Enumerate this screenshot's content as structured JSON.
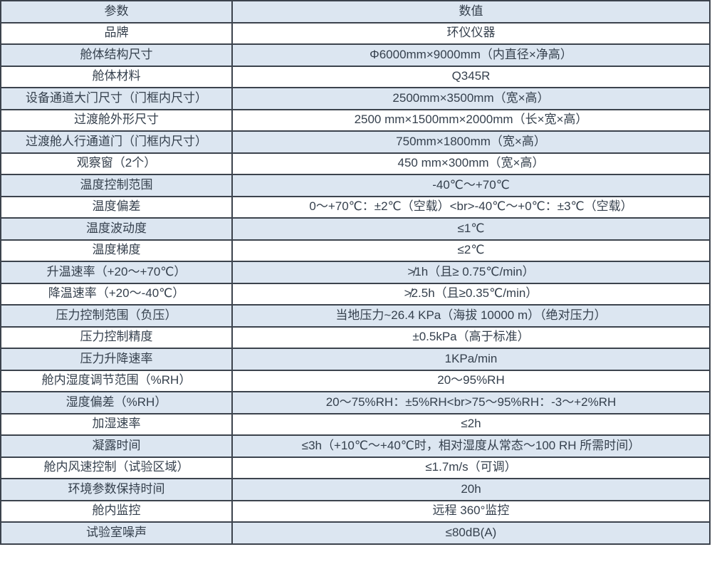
{
  "table": {
    "columns": [
      "参数",
      "数值"
    ],
    "rows": [
      {
        "param": "品牌",
        "value": "环仪仪器"
      },
      {
        "param": "舱体结构尺寸",
        "value": "Φ6000mm×9000mm（内直径×净高）"
      },
      {
        "param": "舱体材料",
        "value": "Q345R"
      },
      {
        "param": "设备通道大门尺寸（门框内尺寸）",
        "value": "2500mm×3500mm（宽×高）"
      },
      {
        "param": "过渡舱外形尺寸",
        "value": "2500 mm×1500mm×2000mm（长×宽×高）"
      },
      {
        "param": "过渡舱人行通道门（门框内尺寸）",
        "value": "750mm×1800mm（宽×高）"
      },
      {
        "param": "观察窗（2个）",
        "value": "450 mm×300mm（宽×高）"
      },
      {
        "param": "温度控制范围",
        "value": "-40℃～+70℃"
      },
      {
        "param": "温度偏差",
        "value": "0～+70℃：±2℃（空载）<br>-40℃～+0℃：±3℃（空载）"
      },
      {
        "param": "温度波动度",
        "value": "≤1℃"
      },
      {
        "param": "温度梯度",
        "value": "≤2℃"
      },
      {
        "param": "升温速率（+20～+70℃）",
        "value": "≯1h（且≥ 0.75℃/min）"
      },
      {
        "param": "降温速率（+20～-40℃）",
        "value": "≯2.5h（且≥0.35℃/min）"
      },
      {
        "param": "压力控制范围（负压）",
        "value": "当地压力~26.4 KPa（海拔 10000 m）（绝对压力）"
      },
      {
        "param": "压力控制精度",
        "value": "±0.5kPa（高于标准）"
      },
      {
        "param": "压力升降速率",
        "value": "1KPa/min"
      },
      {
        "param": "舱内湿度调节范围（%RH）",
        "value": "20～95%RH"
      },
      {
        "param": "湿度偏差（%RH）",
        "value": "20～75%RH：±5%RH<br>75～95%RH：-3～+2%RH"
      },
      {
        "param": "加湿速率",
        "value": "≤2h"
      },
      {
        "param": "凝露时间",
        "value": "≤3h（+10℃～+40℃时，相对湿度从常态～100 RH 所需时间）"
      },
      {
        "param": "舱内风速控制（试验区域）",
        "value": "≤1.7m/s（可调）"
      },
      {
        "param": "环境参数保持时间",
        "value": "20h"
      },
      {
        "param": "舱内监控",
        "value": "远程 360°监控"
      },
      {
        "param": "试验室噪声",
        "value": "≤80dB(A)"
      }
    ]
  },
  "colors": {
    "row_tint": "#dce6f1",
    "row_base": "#ffffff",
    "border": "#3c434d",
    "text": "#35404d"
  }
}
